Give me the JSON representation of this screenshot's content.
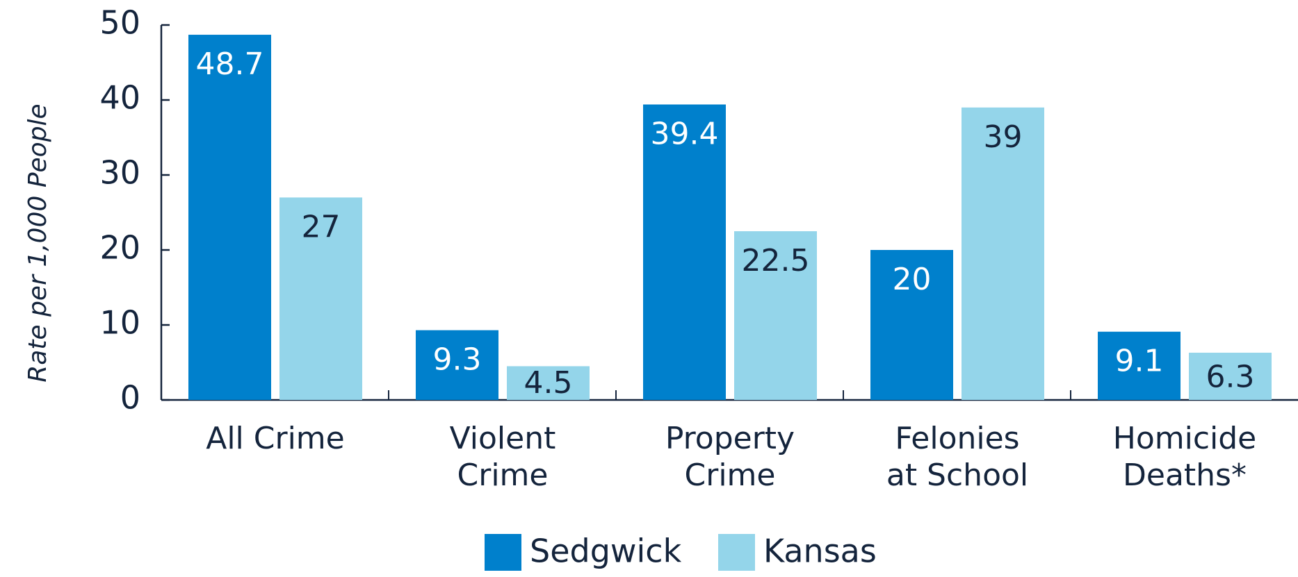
{
  "chart_data": {
    "type": "bar",
    "y_label": "Rate per 1,000 People",
    "categories": [
      "All Crime",
      "Violent\nCrime",
      "Property\nCrime",
      "Felonies\nat School",
      "Homicide\nDeaths*"
    ],
    "series": [
      {
        "name": "Sedgwick",
        "color": "#0080cc",
        "label_color": "#ffffff",
        "values": [
          48.7,
          9.3,
          39.4,
          20,
          9.1
        ]
      },
      {
        "name": "Kansas",
        "color": "#94d5ea",
        "label_color": "#14243c",
        "values": [
          27,
          4.5,
          22.5,
          39,
          6.3
        ]
      }
    ],
    "ylim": [
      0,
      50
    ],
    "yticks": [
      0,
      10,
      20,
      30,
      40,
      50
    ],
    "grid": false
  }
}
